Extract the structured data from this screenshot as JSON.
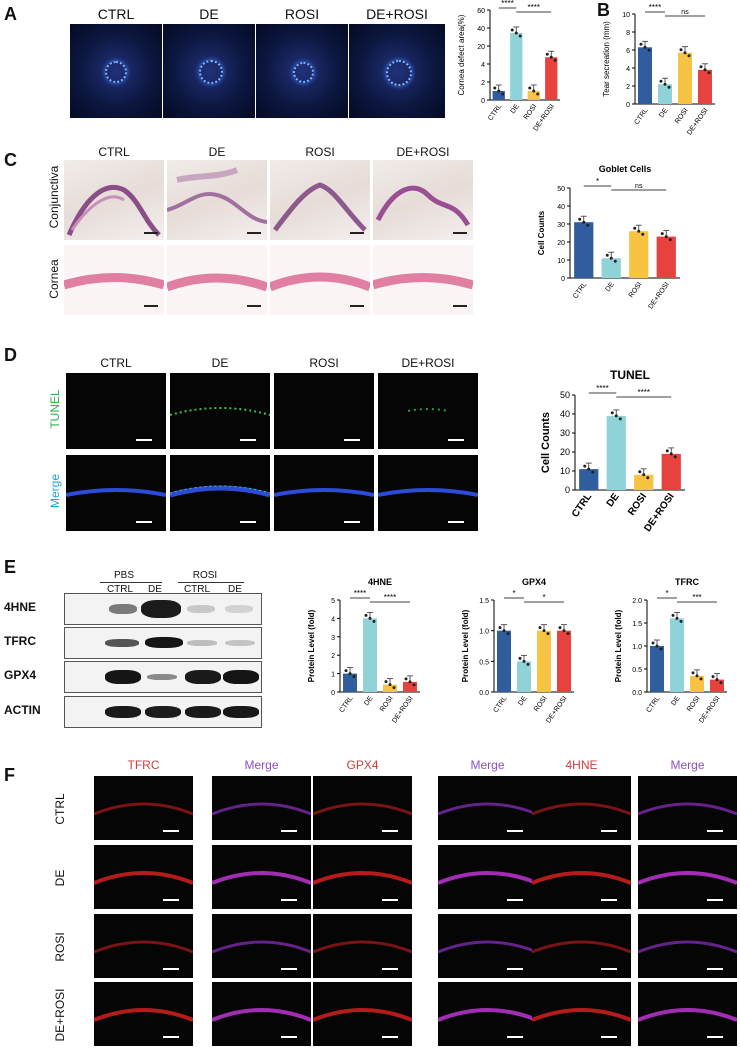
{
  "panels": {
    "A": "A",
    "B": "B",
    "C": "C",
    "D": "D",
    "E": "E",
    "F": "F"
  },
  "groups": [
    "CTRL",
    "DE",
    "ROSI",
    "DE+ROSI"
  ],
  "panelC": {
    "row1": "Conjunctiva",
    "row2": "Cornea"
  },
  "panelD": {
    "row1": "TUNEL",
    "row2": "Merge"
  },
  "panelE": {
    "header_left": "PBS",
    "header_right": "ROSI",
    "lanes": [
      "CTRL",
      "DE",
      "CTRL",
      "DE"
    ],
    "blots": [
      "4HNE",
      "TFRC",
      "GPX4",
      "ACTIN"
    ]
  },
  "panelF": {
    "cols": [
      "TFRC",
      "Merge",
      "GPX4",
      "Merge",
      "4HNE",
      "Merge"
    ],
    "rows": [
      "CTRL",
      "DE",
      "ROSI",
      "DE+ROSI"
    ]
  },
  "colors": {
    "CTRL": "#2f5d9e",
    "DE": "#8fd3d8",
    "ROSI": "#f6c343",
    "DE+ROSI": "#e8423f"
  },
  "chart_data": [
    {
      "id": "A",
      "type": "bar",
      "categories": [
        "CTRL",
        "DE",
        "ROSI",
        "DE+ROSI"
      ],
      "values": [
        1,
        43,
        1,
        25
      ],
      "title": "",
      "ylabel": "Cornea defect area(%)",
      "ylim": [
        0,
        60
      ],
      "ticks": [
        "0",
        "2",
        "4",
        "20",
        "40",
        "60"
      ],
      "sig": [
        "****",
        "****"
      ],
      "axis_break": true
    },
    {
      "id": "B",
      "type": "bar",
      "categories": [
        "CTRL",
        "DE",
        "ROSI",
        "DE+ROSI"
      ],
      "values": [
        6.3,
        2.2,
        5.7,
        3.8
      ],
      "title": "",
      "ylabel": "Tear secreation (mm)",
      "ylim": [
        0,
        10
      ],
      "ticks": [
        "0",
        "2",
        "4",
        "6",
        "8",
        "10"
      ],
      "sig": [
        "****",
        "ns"
      ]
    },
    {
      "id": "C",
      "type": "bar",
      "categories": [
        "CTRL",
        "DE",
        "ROSI",
        "DE+ROSI"
      ],
      "values": [
        31,
        11,
        26,
        23
      ],
      "title": "Goblet Cells",
      "ylabel": "Cell Counts",
      "ylim": [
        0,
        50
      ],
      "ticks": [
        "0",
        "10",
        "20",
        "30",
        "40",
        "50"
      ],
      "sig": [
        "*",
        "ns"
      ]
    },
    {
      "id": "D",
      "type": "bar",
      "categories": [
        "CTRL",
        "DE",
        "ROSI",
        "DE+ROSI"
      ],
      "values": [
        11,
        39,
        8,
        19
      ],
      "title": "TUNEL",
      "ylabel": "Cell  Counts",
      "ylim": [
        0,
        50
      ],
      "ticks": [
        "0",
        "10",
        "20",
        "30",
        "40",
        "50"
      ],
      "sig": [
        "****",
        "****"
      ]
    },
    {
      "id": "E1",
      "type": "bar",
      "categories": [
        "CTRL",
        "DE",
        "ROSI",
        "DE+ROSI"
      ],
      "values": [
        1,
        4,
        0.4,
        0.55
      ],
      "title": "4HNE",
      "ylabel": "Protein Level  (fold)",
      "ylim": [
        0,
        5
      ],
      "ticks": [
        "0",
        "1",
        "2",
        "3",
        "4",
        "5"
      ],
      "sig": [
        "****",
        "****"
      ]
    },
    {
      "id": "E2",
      "type": "bar",
      "categories": [
        "CTRL",
        "DE",
        "ROSI",
        "DE+ROSI"
      ],
      "values": [
        1,
        0.5,
        1,
        1
      ],
      "title": "GPX4",
      "ylabel": "Protein Level  (fold)",
      "ylim": [
        0,
        1.5
      ],
      "ticks": [
        "0.0",
        "0.5",
        "1.0",
        "1.5"
      ],
      "sig": [
        "*",
        "*"
      ]
    },
    {
      "id": "E3",
      "type": "bar",
      "categories": [
        "CTRL",
        "DE",
        "ROSI",
        "DE+ROSI"
      ],
      "values": [
        1,
        1.6,
        0.35,
        0.27
      ],
      "title": "TFRC",
      "ylabel": "Protein Level  (fold)",
      "ylim": [
        0,
        2
      ],
      "ticks": [
        "0.0",
        "0.5",
        "1.0",
        "1.5",
        "2.0"
      ],
      "sig": [
        "*",
        "***"
      ]
    }
  ]
}
